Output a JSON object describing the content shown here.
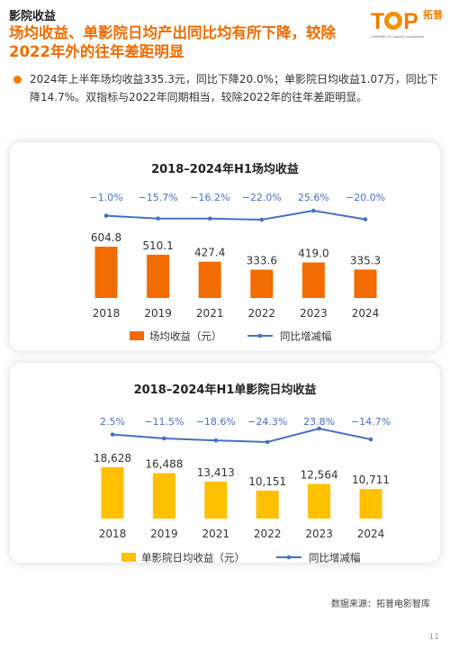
{
  "header": {
    "section": "影院收益",
    "headline": "场均收益、单影院日均产出同比均有所下降，较除2022年外的往年差距明显"
  },
  "logo": {
    "letters_t": "T",
    "letters_p": "P",
    "cn_text": "拓普",
    "subtitle": "COMPANY & Cultural Consultation"
  },
  "summary": "2024年上半年场均收益335.3元，同比下降20.0%；单影院日均收益1.07万，同比下降14.7%。双指标与2022年同期相当，较除2022年的往年差距明显。",
  "chart_data": [
    {
      "type": "bar",
      "title": "2018–2024年H1场均收益",
      "categories": [
        "2018",
        "2019",
        "2021",
        "2022",
        "2023",
        "2024"
      ],
      "series": [
        {
          "name": "场均收益（元）",
          "type": "bar",
          "values": [
            604.8,
            510.1,
            427.4,
            333.6,
            419.0,
            335.3
          ],
          "labels": [
            "604.8",
            "510.1",
            "427.4",
            "333.6",
            "419.0",
            "335.3"
          ],
          "color": "#f26b00"
        },
        {
          "name": "同比增减幅",
          "type": "line",
          "values": [
            -1.0,
            -15.7,
            -16.2,
            -22.0,
            25.6,
            -20.0
          ],
          "labels": [
            "−1.0%",
            "−15.7%",
            "−16.2%",
            "−22.0%",
            "25.6%",
            "−20.0%"
          ],
          "color": "#4472c4"
        }
      ]
    },
    {
      "type": "bar",
      "title": "2018–2024年H1单影院日均收益",
      "categories": [
        "2018",
        "2019",
        "2021",
        "2022",
        "2023",
        "2024"
      ],
      "series": [
        {
          "name": "单影院日均收益（元）",
          "type": "bar",
          "values": [
            18628,
            16488,
            13413,
            10151,
            12564,
            10711
          ],
          "labels": [
            "18,628",
            "16,488",
            "13,413",
            "10,151",
            "12,564",
            "10,711"
          ],
          "color": "#ffc000"
        },
        {
          "name": "同比增减幅",
          "type": "line",
          "values": [
            2.5,
            -11.5,
            -18.6,
            -24.3,
            23.8,
            -14.7
          ],
          "labels": [
            "2.5%",
            "−11.5%",
            "−18.6%",
            "−24.3%",
            "23.8%",
            "−14.7%"
          ],
          "color": "#4472c4"
        }
      ]
    }
  ],
  "footer": {
    "source": "数据来源：拓普电影智库",
    "page": "11"
  }
}
